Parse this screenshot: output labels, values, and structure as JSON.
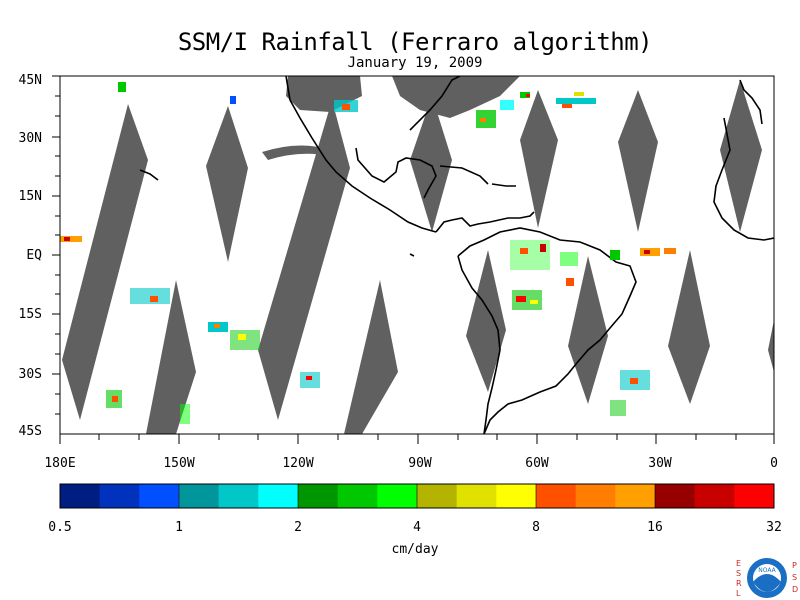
{
  "title": "SSM/I Rainfall (Ferraro algorithm)",
  "date": "January 19, 2009",
  "lat_labels": [
    "45N",
    "30N",
    "15N",
    "EQ",
    "15S",
    "30S",
    "45S"
  ],
  "lon_labels": [
    "180E",
    "150W",
    "120W",
    "90W",
    "60W",
    "30W",
    "0"
  ],
  "colorbar": {
    "tick_labels": [
      "0.5",
      "1",
      "2",
      "4",
      "8",
      "16",
      "32"
    ],
    "units": "cm/day",
    "colors": [
      "#001e82",
      "#0032be",
      "#0050ff",
      "#00969b",
      "#00c8c8",
      "#00ffff",
      "#009600",
      "#00c800",
      "#00ff00",
      "#b4b400",
      "#e1e100",
      "#ffff00",
      "#ff5000",
      "#ff7d00",
      "#ffa000",
      "#960000",
      "#c80000",
      "#ff0000"
    ]
  },
  "colors": {
    "swath_gap": "#606060",
    "ocean": "#ffffff"
  },
  "logo": {
    "left_letters": "ESRL",
    "right_letters": "PSD",
    "badge": "NOAA"
  }
}
